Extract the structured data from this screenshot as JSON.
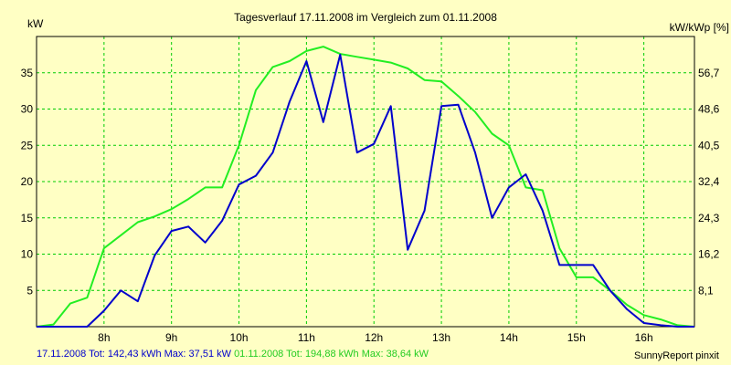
{
  "chart_data": {
    "type": "line",
    "title": "Tagesverlauf 17.11.2008 im Vergleich zum 01.11.2008",
    "ylabel_left": "kW",
    "ylabel_right": "kW/kWp [%]",
    "xlim": [
      7.0,
      16.75
    ],
    "ylim": [
      0,
      40
    ],
    "x_ticks": [
      {
        "value": 8,
        "label": "8h"
      },
      {
        "value": 9,
        "label": "9h"
      },
      {
        "value": 10,
        "label": "10h"
      },
      {
        "value": 11,
        "label": "11h"
      },
      {
        "value": 12,
        "label": "12h"
      },
      {
        "value": 13,
        "label": "13h"
      },
      {
        "value": 14,
        "label": "14h"
      },
      {
        "value": 15,
        "label": "15h"
      },
      {
        "value": 16,
        "label": "16h"
      }
    ],
    "y_ticks_left": [
      5,
      10,
      15,
      20,
      25,
      30,
      35
    ],
    "y_ticks_right": [
      {
        "value": 5,
        "label": "8,1"
      },
      {
        "value": 10,
        "label": "16,2"
      },
      {
        "value": 15,
        "label": "24,3"
      },
      {
        "value": 20,
        "label": "32,4"
      },
      {
        "value": 25,
        "label": "40,5"
      },
      {
        "value": 30,
        "label": "48,6"
      },
      {
        "value": 35,
        "label": "56,7"
      }
    ],
    "grid": true,
    "series": [
      {
        "name": "17.11.2008 Tot: 142,43 kWh Max: 37,51 kW",
        "color": "#0000cc",
        "x": [
          7.0,
          7.25,
          7.5,
          7.75,
          8.0,
          8.25,
          8.5,
          8.75,
          9.0,
          9.25,
          9.5,
          9.75,
          10.0,
          10.25,
          10.5,
          10.75,
          11.0,
          11.25,
          11.5,
          11.75,
          12.0,
          12.25,
          12.5,
          12.75,
          13.0,
          13.25,
          13.5,
          13.75,
          14.0,
          14.25,
          14.5,
          14.75,
          15.0,
          15.25,
          15.5,
          15.75,
          16.0,
          16.25,
          16.5,
          16.75
        ],
        "y": [
          0,
          0,
          0,
          0,
          2.2,
          5.0,
          3.5,
          9.8,
          13.2,
          13.8,
          11.6,
          14.6,
          19.6,
          20.8,
          24.0,
          31.0,
          36.6,
          28.2,
          37.5,
          24.0,
          25.2,
          30.4,
          10.6,
          16.0,
          30.4,
          30.6,
          24.0,
          15.0,
          19.2,
          21.0,
          16.0,
          8.5,
          8.5,
          8.5,
          5.0,
          2.4,
          0.5,
          0.2,
          0,
          0
        ]
      },
      {
        "name": "01.11.2008 Tot: 194,88 kWh Max: 38,64 kW",
        "color": "#22ee22",
        "x": [
          7.0,
          7.25,
          7.5,
          7.75,
          8.0,
          8.25,
          8.5,
          8.75,
          9.0,
          9.25,
          9.5,
          9.75,
          10.0,
          10.25,
          10.5,
          10.75,
          11.0,
          11.25,
          11.5,
          11.75,
          12.0,
          12.25,
          12.5,
          12.75,
          13.0,
          13.25,
          13.5,
          13.75,
          14.0,
          14.25,
          14.5,
          14.75,
          15.0,
          15.25,
          15.5,
          15.75,
          16.0,
          16.25,
          16.5,
          16.75
        ],
        "y": [
          0,
          0.3,
          3.2,
          4.0,
          10.8,
          12.6,
          14.4,
          15.2,
          16.2,
          17.6,
          19.2,
          19.2,
          25.0,
          32.6,
          35.8,
          36.6,
          38.0,
          38.6,
          37.6,
          37.2,
          36.8,
          36.4,
          35.6,
          34.0,
          33.8,
          31.8,
          29.6,
          26.6,
          25.0,
          19.2,
          18.8,
          10.8,
          6.8,
          6.8,
          5.0,
          3.0,
          1.6,
          1.0,
          0.2,
          0
        ]
      }
    ],
    "legend_placement": "bottom-left"
  },
  "legend": {
    "series1": "17.11.2008 Tot: 142,43 kWh Max: 37,51 kW",
    "series2": "01.11.2008 Tot: 194,88 kWh Max: 38,64 kW"
  },
  "credit": "SunnyReport pinxit",
  "colors": {
    "background": "#ffffc4",
    "grid": "#00cc00",
    "series1": "#0000cc",
    "series2": "#22ee22"
  }
}
